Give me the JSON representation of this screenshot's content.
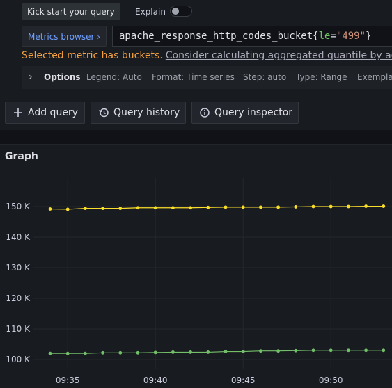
{
  "header": {
    "kick_start_label": "Kick start your query",
    "explain_label": "Explain"
  },
  "metrics_browser": {
    "label": "Metrics browser ›"
  },
  "query": {
    "metric": "apache_response_http_codes_bucket",
    "open_brace": "{",
    "label_key": "le",
    "eq": "=",
    "label_value": "\"499\"",
    "close_brace": "}"
  },
  "warning": {
    "text": "Selected metric has buckets.",
    "link": "Consider calculating aggregated quantile by addi"
  },
  "options": {
    "title": "Options",
    "items": [
      "Legend: Auto",
      "Format: Time series",
      "Step: auto",
      "Type: Range",
      "Exemplar"
    ]
  },
  "actions": {
    "add_query": "Add query",
    "query_history": "Query history",
    "query_inspector": "Query inspector"
  },
  "panel": {
    "title": "Graph"
  },
  "colors": {
    "series_a": "#fade2a",
    "series_b": "#73bf69",
    "warning": "#f5a142",
    "link_blue": "#6e9fff"
  },
  "chart_data": {
    "type": "line",
    "title": "Graph",
    "xlabel": "",
    "ylabel": "",
    "x": [
      "09:34",
      "09:35",
      "09:36",
      "09:37",
      "09:38",
      "09:39",
      "09:40",
      "09:41",
      "09:42",
      "09:43",
      "09:44",
      "09:45",
      "09:46",
      "09:47",
      "09:48",
      "09:49",
      "09:50",
      "09:51",
      "09:52",
      "09:53"
    ],
    "x_ticks": [
      "09:35",
      "09:40",
      "09:45",
      "09:50"
    ],
    "y_ticks": [
      "100 K",
      "110 K",
      "120 K",
      "130 K",
      "140 K",
      "150 K"
    ],
    "ylim": [
      100000,
      150000
    ],
    "grid": true,
    "series": [
      {
        "values": [
          149200,
          149100,
          149400,
          149400,
          149400,
          149600,
          149600,
          149600,
          149600,
          149700,
          149800,
          149800,
          149800,
          149800,
          149900,
          150000,
          150000,
          150000,
          150100,
          150100
        ]
      },
      {
        "values": [
          102000,
          102000,
          102000,
          102200,
          102200,
          102200,
          102300,
          102400,
          102400,
          102400,
          102600,
          102600,
          102800,
          102800,
          102900,
          103000,
          103000,
          103000,
          103000,
          103000
        ]
      }
    ]
  }
}
